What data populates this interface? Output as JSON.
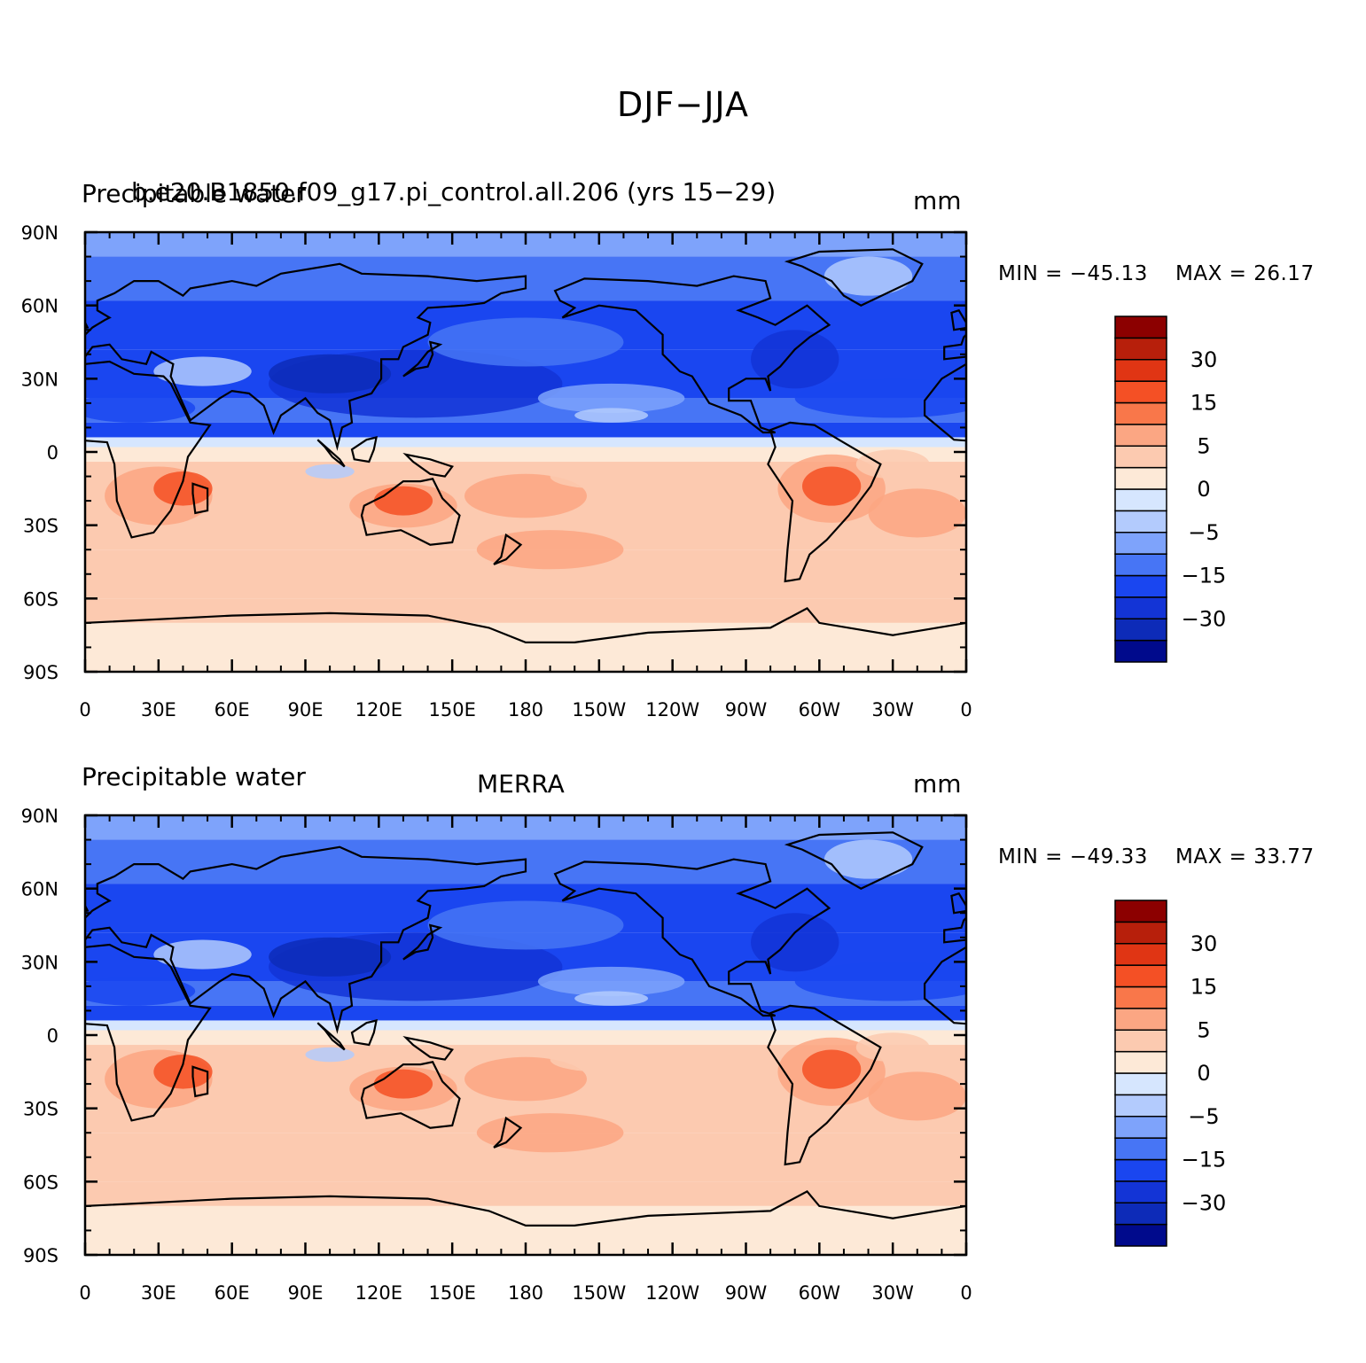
{
  "title": "DJF−JJA",
  "palette": {
    "levels": [
      "-40",
      "-35",
      "-30",
      "-20",
      "-15",
      "-10",
      "-5",
      "-2",
      "0",
      "2",
      "5",
      "10",
      "15",
      "20",
      "30",
      "35"
    ],
    "colors": [
      "#000a8c",
      "#0d2bb8",
      "#1334d6",
      "#1a46f0",
      "#4775f5",
      "#7ea3fb",
      "#b3cbfd",
      "#d6e6fe",
      "#fde9d7",
      "#fccab0",
      "#fba683",
      "#f9774a",
      "#f45025",
      "#e03514",
      "#b71f0b",
      "#8c0000"
    ],
    "labels": [
      {
        "text": "30",
        "level": "30"
      },
      {
        "text": "15",
        "level": "15"
      },
      {
        "text": "5",
        "level": "5"
      },
      {
        "text": "0",
        "level": "0"
      },
      {
        "text": "−5",
        "level": "-5"
      },
      {
        "text": "−15",
        "level": "-15"
      },
      {
        "text": "−30",
        "level": "-30"
      }
    ]
  },
  "axes": {
    "lat_labels": [
      "90N",
      "60N",
      "30N",
      "0",
      "30S",
      "60S",
      "90S"
    ],
    "lon_labels": [
      "0",
      "30E",
      "60E",
      "90E",
      "120E",
      "150E",
      "180",
      "150W",
      "120W",
      "90W",
      "60W",
      "30W",
      "0"
    ]
  },
  "panels": [
    {
      "left_label": "Precipitable water",
      "center_label": "b.e20.B1850.f09_g17.pi_control.all.206 (yrs 15−29)",
      "units": "mm",
      "min_label": "MIN = −45.13",
      "max_label": "MAX =   26.17",
      "min": -45.13,
      "max": 26.17
    },
    {
      "left_label": "Precipitable water",
      "center_label": "MERRA",
      "units": "mm",
      "min_label": "MIN = −49.33",
      "max_label": "MAX =   33.77",
      "min": -49.33,
      "max": 33.77
    }
  ]
}
